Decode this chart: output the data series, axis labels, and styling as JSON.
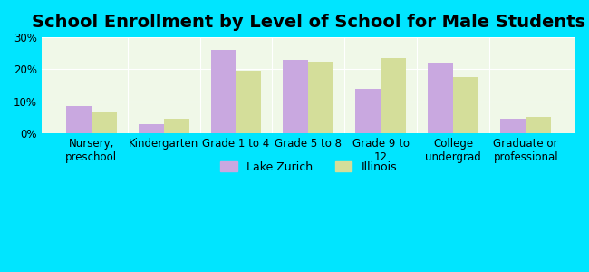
{
  "title": "School Enrollment by Level of School for Male Students",
  "categories": [
    "Nursery,\npreschool",
    "Kindergarten",
    "Grade 1 to 4",
    "Grade 5 to 8",
    "Grade 9 to\n12",
    "College\nundergrad",
    "Graduate or\nprofessional"
  ],
  "lake_zurich": [
    8.5,
    3.0,
    26.0,
    23.0,
    14.0,
    22.0,
    4.5
  ],
  "illinois": [
    6.5,
    4.7,
    19.5,
    22.5,
    23.5,
    17.5,
    5.0
  ],
  "lake_zurich_color": "#c9a8e0",
  "illinois_color": "#d4de9a",
  "background_outer": "#00e5ff",
  "background_inner": "#f0f8e8",
  "bar_width": 0.35,
  "ylim": [
    0,
    30
  ],
  "yticks": [
    0,
    10,
    20,
    30
  ],
  "ytick_labels": [
    "0%",
    "10%",
    "20%",
    "30%"
  ],
  "legend_labels": [
    "Lake Zurich",
    "Illinois"
  ],
  "title_fontsize": 14,
  "tick_fontsize": 8.5,
  "legend_fontsize": 9
}
